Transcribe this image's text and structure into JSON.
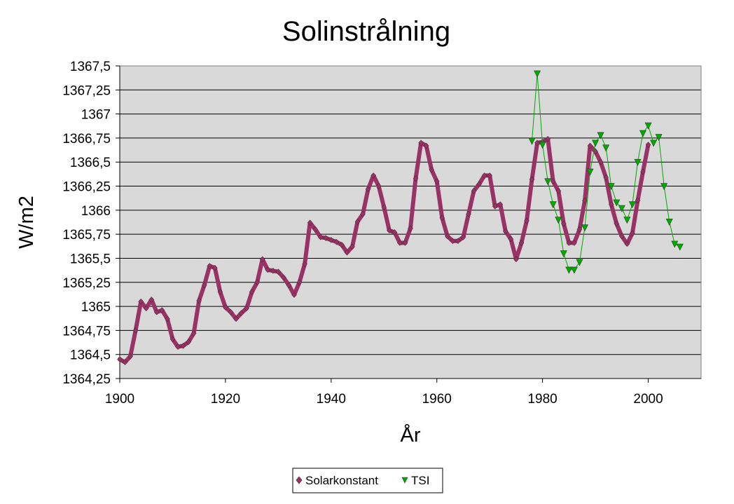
{
  "chart_data": {
    "type": "line",
    "title": "Solinstrålning",
    "xlabel": "År",
    "ylabel": "W/m2",
    "xlim": [
      1900,
      2010
    ],
    "ylim": [
      1364.25,
      1367.5
    ],
    "x_ticks": [
      1900,
      1920,
      1940,
      1960,
      1980,
      2000
    ],
    "x_tick_labels": [
      "1900",
      "1920",
      "1940",
      "1960",
      "1980",
      "2000"
    ],
    "y_ticks": [
      1364.25,
      1364.5,
      1364.75,
      1365,
      1365.25,
      1365.5,
      1365.75,
      1366,
      1366.25,
      1366.5,
      1366.75,
      1367,
      1367.25,
      1367.5
    ],
    "y_tick_labels": [
      "1364,25",
      "1364,5",
      "1364,75",
      "1365",
      "1365,25",
      "1365,5",
      "1365,75",
      "1366",
      "1366,25",
      "1366,5",
      "1366,75",
      "1367",
      "1367,25",
      "1367,5"
    ],
    "grid": true,
    "legend_position": "bottom",
    "plot_background": "#d9d9d9",
    "series": [
      {
        "name": "Solarkonstant",
        "color": "#993366",
        "marker": "diamond",
        "x": [
          1900,
          1901,
          1902,
          1903,
          1904,
          1905,
          1906,
          1907,
          1908,
          1909,
          1910,
          1911,
          1912,
          1913,
          1914,
          1915,
          1916,
          1917,
          1918,
          1919,
          1920,
          1921,
          1922,
          1923,
          1924,
          1925,
          1926,
          1927,
          1928,
          1929,
          1930,
          1931,
          1932,
          1933,
          1934,
          1935,
          1936,
          1937,
          1938,
          1939,
          1940,
          1941,
          1942,
          1943,
          1944,
          1945,
          1946,
          1947,
          1948,
          1949,
          1950,
          1951,
          1952,
          1953,
          1954,
          1955,
          1956,
          1957,
          1958,
          1959,
          1960,
          1961,
          1962,
          1963,
          1964,
          1965,
          1966,
          1967,
          1968,
          1969,
          1970,
          1971,
          1972,
          1973,
          1974,
          1975,
          1976,
          1977,
          1978,
          1979,
          1980,
          1981,
          1982,
          1983,
          1984,
          1985,
          1986,
          1987,
          1988,
          1989,
          1990,
          1991,
          1992,
          1993,
          1994,
          1995,
          1996,
          1997,
          1998,
          1999,
          2000
        ],
        "y": [
          1364.45,
          1364.42,
          1364.48,
          1364.75,
          1365.05,
          1364.98,
          1365.07,
          1364.94,
          1364.96,
          1364.87,
          1364.66,
          1364.58,
          1364.59,
          1364.63,
          1364.72,
          1365.06,
          1365.22,
          1365.42,
          1365.4,
          1365.15,
          1364.99,
          1364.94,
          1364.87,
          1364.93,
          1364.98,
          1365.15,
          1365.25,
          1365.49,
          1365.38,
          1365.37,
          1365.36,
          1365.3,
          1365.22,
          1365.12,
          1365.25,
          1365.44,
          1365.87,
          1365.8,
          1365.72,
          1365.71,
          1365.69,
          1365.67,
          1365.64,
          1365.56,
          1365.62,
          1365.88,
          1365.96,
          1366.22,
          1366.36,
          1366.25,
          1366.03,
          1365.79,
          1365.77,
          1365.66,
          1365.66,
          1365.81,
          1366.33,
          1366.7,
          1366.67,
          1366.42,
          1366.3,
          1365.92,
          1365.73,
          1365.68,
          1365.68,
          1365.72,
          1365.96,
          1366.2,
          1366.27,
          1366.36,
          1366.36,
          1366.04,
          1366.06,
          1365.78,
          1365.7,
          1365.49,
          1365.66,
          1365.89,
          1366.32,
          1366.7,
          1366.71,
          1366.74,
          1366.3,
          1366.2,
          1365.86,
          1365.66,
          1365.66,
          1365.8,
          1366.1,
          1366.67,
          1366.61,
          1366.5,
          1366.34,
          1366.06,
          1365.86,
          1365.73,
          1365.65,
          1365.76,
          1366.1,
          1366.4,
          1366.68
        ]
      },
      {
        "name": "TSI",
        "color": "#00aa00",
        "marker": "triangle-down",
        "x": [
          1978,
          1979,
          1980,
          1981,
          1982,
          1983,
          1984,
          1985,
          1986,
          1987,
          1988,
          1989,
          1990,
          1991,
          1992,
          1993,
          1994,
          1995,
          1996,
          1997,
          1998,
          1999,
          2000,
          2001,
          2002,
          2003,
          2004,
          2005,
          2006
        ],
        "y": [
          1366.72,
          1367.42,
          1366.68,
          1366.3,
          1366.06,
          1365.9,
          1365.55,
          1365.38,
          1365.38,
          1365.46,
          1365.82,
          1366.4,
          1366.7,
          1366.78,
          1366.65,
          1366.25,
          1366.08,
          1366.02,
          1365.9,
          1366.06,
          1366.5,
          1366.8,
          1366.88,
          1366.7,
          1366.76,
          1366.25,
          1365.88,
          1365.65,
          1365.62
        ]
      }
    ]
  }
}
